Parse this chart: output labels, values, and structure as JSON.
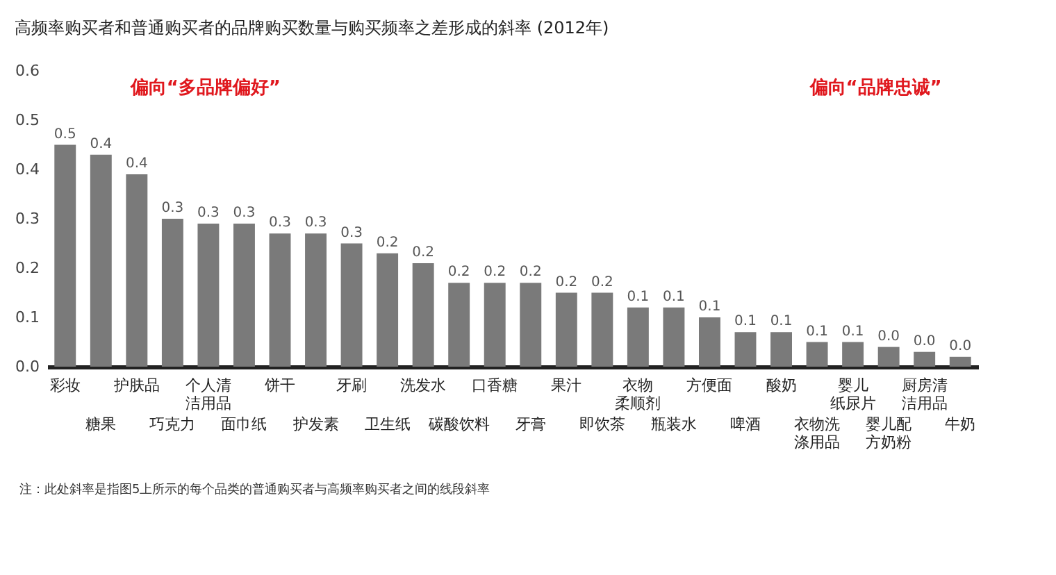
{
  "chart_data": {
    "type": "bar",
    "title": "高频率购买者和普通购买者的品牌购买数量与购买频率之差形成的斜率 (2012年)",
    "categories": [
      "彩妆",
      "糖果",
      "护肤品",
      "巧克力",
      "个人清洁用品",
      "面巾纸",
      "饼干",
      "护发素",
      "牙刷",
      "卫生纸",
      "洗发水",
      "碳酸饮料",
      "口香糖",
      "牙膏",
      "果汁",
      "即饮茶",
      "衣物柔顺剂",
      "瓶装水",
      "方便面",
      "啤酒",
      "酸奶",
      "衣物洗涤用品",
      "婴儿纸尿片",
      "婴儿配方奶粉",
      "厨房清洁用品",
      "牛奶"
    ],
    "values": [
      0.45,
      0.43,
      0.39,
      0.3,
      0.29,
      0.29,
      0.27,
      0.27,
      0.25,
      0.23,
      0.21,
      0.17,
      0.17,
      0.17,
      0.15,
      0.15,
      0.12,
      0.12,
      0.1,
      0.07,
      0.07,
      0.05,
      0.05,
      0.04,
      0.03,
      0.02
    ],
    "value_labels": [
      "0.5",
      "0.4",
      "0.4",
      "0.3",
      "0.3",
      "0.3",
      "0.3",
      "0.3",
      "0.3",
      "0.2",
      "0.2",
      "0.2",
      "0.2",
      "0.2",
      "0.2",
      "0.2",
      "0.1",
      "0.1",
      "0.1",
      "0.1",
      "0.1",
      "0.1",
      "0.1",
      "0.0",
      "0.0",
      "0.0"
    ],
    "color": "#7a7a7a",
    "ylim": [
      0,
      0.6
    ],
    "yticks": [
      {
        "value": 0,
        "label": "0.0"
      },
      {
        "value": 0.1,
        "label": "0.1"
      },
      {
        "value": 0.2,
        "label": "0.2"
      },
      {
        "value": 0.3,
        "label": "0.3"
      },
      {
        "value": 0.4,
        "label": "0.4"
      },
      {
        "value": 0.5,
        "label": "0.5"
      },
      {
        "value": 0.6,
        "label": "0.6"
      }
    ],
    "grid": false,
    "annotations": [
      "偏向“多品牌偏好”",
      "偏向“品牌忠诚”",
      "注：此处斜率是指图5上所示的每个品类的普通购买者与高频率购买者之间的线段斜率"
    ]
  }
}
